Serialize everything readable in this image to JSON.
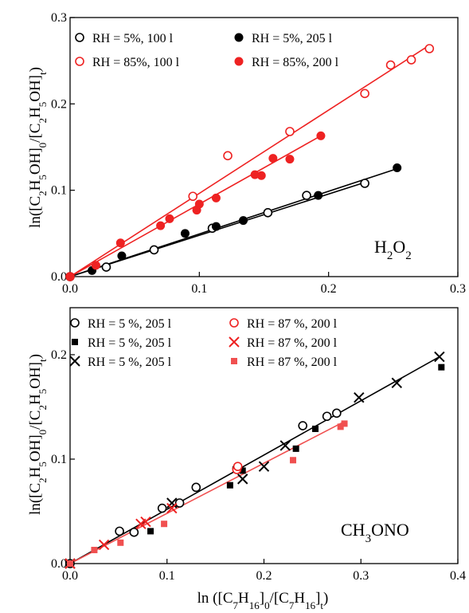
{
  "chart_data": [
    {
      "type": "scatter",
      "title": "",
      "annotation": {
        "main": "H",
        "sub1": "2",
        "mid": "O",
        "sub2": "2"
      },
      "ylabel": {
        "parts": [
          {
            "t": "ln([C",
            "s": false
          },
          {
            "t": "2",
            "s": true
          },
          {
            "t": "H",
            "s": false
          },
          {
            "t": "5",
            "s": true
          },
          {
            "t": "OH]",
            "s": false
          },
          {
            "t": "0",
            "s": true
          },
          {
            "t": "/[C",
            "s": false
          },
          {
            "t": "2",
            "s": true
          },
          {
            "t": "H",
            "s": false
          },
          {
            "t": "5",
            "s": true
          },
          {
            "t": "OH]",
            "s": false
          },
          {
            "t": "t",
            "s": true
          },
          {
            "t": ")",
            "s": false
          }
        ]
      },
      "xlim": [
        0,
        0.3
      ],
      "ylim": [
        0,
        0.3
      ],
      "xticks": [
        0.0,
        0.1,
        0.2,
        0.3
      ],
      "yticks": [
        0.0,
        0.1,
        0.2,
        0.3
      ],
      "xtick_labels": [
        "0.0",
        "0.1",
        "0.2",
        "0.3"
      ],
      "ytick_labels": [
        "0.0",
        "0.1",
        "0.2",
        "0.3"
      ],
      "grid": false,
      "legend_position": "top",
      "series": [
        {
          "name": "RH = 5%, 100 l",
          "color": "#000000",
          "marker": "open-circle",
          "x": [
            0,
            0.028,
            0.065,
            0.11,
            0.153,
            0.183,
            0.228
          ],
          "y": [
            0,
            0.011,
            0.031,
            0.056,
            0.074,
            0.094,
            0.108
          ],
          "fit": [
            [
              0,
              0
            ],
            [
              0.228,
              0.109
            ]
          ]
        },
        {
          "name": "RH = 5%, 205 l",
          "color": "#000000",
          "marker": "filled-circle",
          "x": [
            0,
            0.017,
            0.04,
            0.089,
            0.113,
            0.134,
            0.192,
            0.253
          ],
          "y": [
            0,
            0.007,
            0.024,
            0.05,
            0.058,
            0.065,
            0.094,
            0.126
          ],
          "fit": [
            [
              0,
              0
            ],
            [
              0.253,
              0.125
            ]
          ]
        },
        {
          "name": "RH = 85%, 100 l",
          "color": "#ee2222",
          "marker": "open-circle",
          "x": [
            0,
            0.095,
            0.122,
            0.17,
            0.228,
            0.248,
            0.264,
            0.278
          ],
          "y": [
            0,
            0.093,
            0.14,
            0.168,
            0.212,
            0.245,
            0.251,
            0.264
          ],
          "fit": [
            [
              0,
              0
            ],
            [
              0.278,
              0.268
            ]
          ]
        },
        {
          "name": "RH = 85%, 200 l",
          "color": "#ee2222",
          "marker": "filled-circle",
          "x": [
            0,
            0.02,
            0.039,
            0.07,
            0.077,
            0.098,
            0.1,
            0.113,
            0.143,
            0.148,
            0.157,
            0.17,
            0.194
          ],
          "y": [
            0,
            0.013,
            0.039,
            0.059,
            0.067,
            0.077,
            0.084,
            0.091,
            0.118,
            0.117,
            0.137,
            0.136,
            0.163
          ],
          "fit": [
            [
              0,
              0
            ],
            [
              0.194,
              0.163
            ]
          ]
        }
      ]
    },
    {
      "type": "scatter",
      "title": "",
      "annotation": {
        "main": "CH",
        "sub1": "3",
        "mid": "ONO",
        "sub2": ""
      },
      "ylabel": {
        "parts": [
          {
            "t": "ln([C",
            "s": false
          },
          {
            "t": "2",
            "s": true
          },
          {
            "t": "H",
            "s": false
          },
          {
            "t": "5",
            "s": true
          },
          {
            "t": "OH]",
            "s": false
          },
          {
            "t": "0",
            "s": true
          },
          {
            "t": "/[C",
            "s": false
          },
          {
            "t": "2",
            "s": true
          },
          {
            "t": "H",
            "s": false
          },
          {
            "t": "5",
            "s": true
          },
          {
            "t": "OH]",
            "s": false
          },
          {
            "t": "t",
            "s": true
          },
          {
            "t": ")",
            "s": false
          }
        ]
      },
      "xlabel": {
        "parts": [
          {
            "t": "ln ([C",
            "s": false
          },
          {
            "t": "7",
            "s": true
          },
          {
            "t": "H",
            "s": false
          },
          {
            "t": "16",
            "s": true
          },
          {
            "t": "]",
            "s": false
          },
          {
            "t": "0",
            "s": true
          },
          {
            "t": "/[C",
            "s": false
          },
          {
            "t": "7",
            "s": true
          },
          {
            "t": "H",
            "s": false
          },
          {
            "t": "16",
            "s": true
          },
          {
            "t": "]",
            "s": false
          },
          {
            "t": "t",
            "s": true
          },
          {
            "t": ")",
            "s": false
          }
        ]
      },
      "xlim": [
        0,
        0.4
      ],
      "ylim": [
        0,
        0.245
      ],
      "xticks": [
        0.0,
        0.1,
        0.2,
        0.3,
        0.4
      ],
      "yticks": [
        0.0,
        0.1,
        0.2
      ],
      "xtick_labels": [
        "0.0",
        "0.1",
        "0.2",
        "0.3",
        "0.4"
      ],
      "ytick_labels": [
        "0.0",
        "0.1",
        "0.2"
      ],
      "grid": false,
      "legend_position": "top",
      "series": [
        {
          "name": "RH = 5 %, 205 l",
          "color": "#000000",
          "marker": "open-circle",
          "x": [
            0,
            0.051,
            0.066,
            0.095,
            0.113,
            0.13,
            0.172,
            0.24,
            0.265,
            0.275
          ],
          "y": [
            0,
            0.031,
            0.03,
            0.053,
            0.058,
            0.073,
            0.091,
            0.132,
            0.141,
            0.144
          ],
          "fit": null
        },
        {
          "name": "RH = 5 %, 205 l",
          "color": "#000000",
          "marker": "filled-square",
          "x": [
            0,
            0.083,
            0.165,
            0.178,
            0.233,
            0.253,
            0.383
          ],
          "y": [
            0,
            0.031,
            0.075,
            0.089,
            0.11,
            0.129,
            0.188
          ],
          "fit": null
        },
        {
          "name": "RH = 5 %, 205 l",
          "color": "#000000",
          "marker": "x",
          "x": [
            0,
            0.105,
            0.178,
            0.2,
            0.222,
            0.298,
            0.337,
            0.381
          ],
          "y": [
            0,
            0.058,
            0.081,
            0.093,
            0.113,
            0.159,
            0.173,
            0.198
          ],
          "fit": [
            [
              0,
              0
            ],
            [
              0.381,
              0.198
            ]
          ]
        },
        {
          "name": "RH = 87 %, 200 l",
          "color": "#ee2222",
          "marker": "open-circle",
          "x": [
            0.172,
            0.173
          ],
          "y": [
            0.09,
            0.093
          ],
          "fit": null
        },
        {
          "name": "RH = 87 %, 200 l",
          "color": "#ee2222",
          "marker": "x",
          "x": [
            0,
            0.035,
            0.073,
            0.078,
            0.105
          ],
          "y": [
            0,
            0.018,
            0.038,
            0.04,
            0.053
          ],
          "fit": null
        },
        {
          "name": "RH = 87 %, 200 l",
          "color": "#f05050",
          "marker": "filled-square",
          "x": [
            0,
            0.025,
            0.052,
            0.097,
            0.23,
            0.279,
            0.283
          ],
          "y": [
            0,
            0.013,
            0.02,
            0.038,
            0.099,
            0.131,
            0.134
          ],
          "fit": [
            [
              0,
              0
            ],
            [
              0.283,
              0.136
            ]
          ]
        }
      ]
    }
  ]
}
